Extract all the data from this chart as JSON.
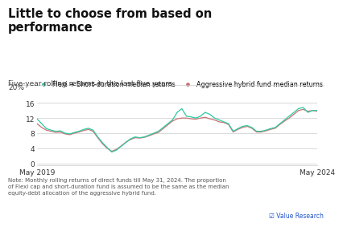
{
  "title": "Little to choose from based on\nperformance",
  "subtitle": "Five-year rolling returns in the last five years",
  "legend_label1": "Flexi + Short-duration median returns",
  "legend_label2": "Aggressive hybrid fund median returns",
  "ylabel_20": "20%",
  "yticks": [
    0,
    4,
    8,
    12,
    16
  ],
  "xtick_labels": [
    "May 2019",
    "May 2024"
  ],
  "note": "Note: Monthly rolling returns of direct funds till May 31, 2024. The proportion\nof Flexi cap and short-duration fund is assumed to be the same as the median\nequity-debt allocation of the aggressive hybrid fund.",
  "watermark": "☑ Value Research",
  "color_flexi": "#2ec9a1",
  "color_hybrid": "#c87272",
  "background": "#ffffff",
  "line_color_grid": "#cccccc",
  "n_points": 61,
  "flexi_data": [
    11.8,
    10.5,
    9.2,
    8.8,
    8.5,
    8.6,
    8.0,
    7.8,
    8.2,
    8.5,
    9.0,
    9.3,
    8.8,
    7.0,
    5.5,
    4.2,
    3.0,
    3.5,
    4.5,
    5.5,
    6.5,
    7.0,
    6.8,
    7.0,
    7.5,
    8.0,
    8.5,
    9.5,
    10.5,
    11.5,
    13.5,
    14.5,
    12.5,
    12.3,
    12.0,
    12.5,
    13.5,
    13.0,
    12.0,
    11.5,
    11.0,
    10.5,
    8.5,
    9.2,
    9.8,
    10.0,
    9.5,
    8.5,
    8.5,
    8.8,
    9.2,
    9.5,
    10.5,
    11.5,
    12.5,
    13.5,
    14.5,
    14.8,
    13.5,
    14.0,
    14.0
  ],
  "hybrid_data": [
    10.5,
    9.5,
    8.8,
    8.5,
    8.2,
    8.3,
    7.8,
    7.6,
    8.0,
    8.3,
    8.7,
    9.0,
    8.5,
    6.8,
    5.2,
    4.0,
    3.2,
    3.7,
    4.6,
    5.6,
    6.3,
    6.8,
    6.7,
    6.9,
    7.3,
    7.8,
    8.2,
    9.2,
    10.2,
    11.2,
    11.8,
    12.0,
    12.0,
    11.8,
    11.7,
    12.0,
    12.2,
    11.8,
    11.5,
    11.0,
    10.8,
    10.3,
    8.3,
    9.0,
    9.5,
    9.8,
    9.3,
    8.3,
    8.3,
    8.6,
    9.0,
    9.3,
    10.3,
    11.2,
    12.0,
    13.0,
    14.0,
    14.3,
    13.8,
    14.0,
    13.8
  ]
}
